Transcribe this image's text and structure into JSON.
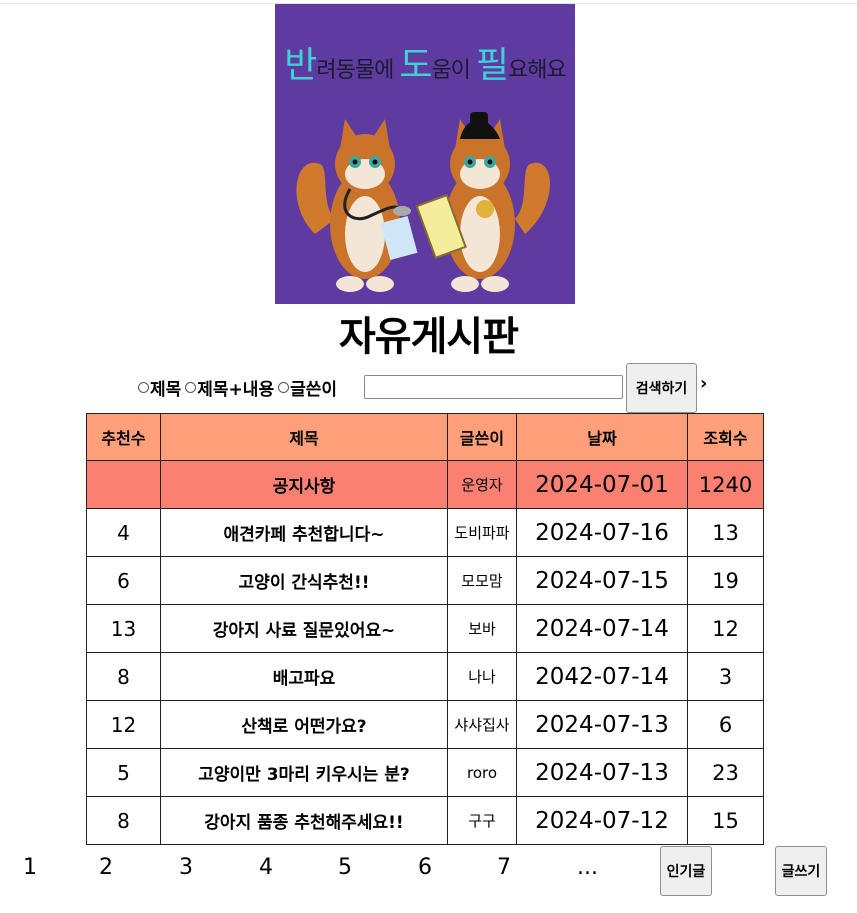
{
  "banner": {
    "title_big_1": "반",
    "title_small_1": "려동물에 ",
    "title_big_2": "도",
    "title_small_2": "움이 ",
    "title_big_3": "필",
    "title_small_3": "요해요",
    "bg_color": "#5f3aa0"
  },
  "page_title": "자유게시판",
  "search": {
    "options": [
      "제목",
      "제목+내용",
      "글쓴이"
    ],
    "input_value": "",
    "button_label": "검색하기",
    "next_icon": "chevron-right-icon"
  },
  "table": {
    "headers": [
      "추천수",
      "제목",
      "글쓴이",
      "날짜",
      "조회수"
    ],
    "notice": {
      "rec": "",
      "title": "공지사항",
      "writer": "운영자",
      "date": "2024-07-01",
      "views": "1240"
    },
    "rows": [
      {
        "rec": "4",
        "title": "애견카페 추천합니다~",
        "writer": "도비파파",
        "date": "2024-07-16",
        "views": "13"
      },
      {
        "rec": "6",
        "title": "고양이 간식추천!!",
        "writer": "모모맘",
        "date": "2024-07-15",
        "views": "19"
      },
      {
        "rec": "13",
        "title": "강아지 사료 질문있어요~",
        "writer": "보바",
        "date": "2024-07-14",
        "views": "12"
      },
      {
        "rec": "8",
        "title": "배고파요",
        "writer": "나나",
        "date": "2042-07-14",
        "views": "3"
      },
      {
        "rec": "12",
        "title": "산책로 어떤가요?",
        "writer": "샤샤집사",
        "date": "2024-07-13",
        "views": "6"
      },
      {
        "rec": "5",
        "title": "고양이만 3마리 키우시는 분?",
        "writer": "roro",
        "date": "2024-07-13",
        "views": "23"
      },
      {
        "rec": "8",
        "title": "강아지 품종 추천해주세요!!",
        "writer": "구구",
        "date": "2024-07-12",
        "views": "15"
      }
    ],
    "header_color": "#ffa07a",
    "notice_color": "#fa8072"
  },
  "pagination": {
    "pages": [
      "1",
      "2",
      "3",
      "4",
      "5",
      "6",
      "7",
      "..."
    ],
    "popular_label": "인기글",
    "write_label": "글쓰기"
  }
}
